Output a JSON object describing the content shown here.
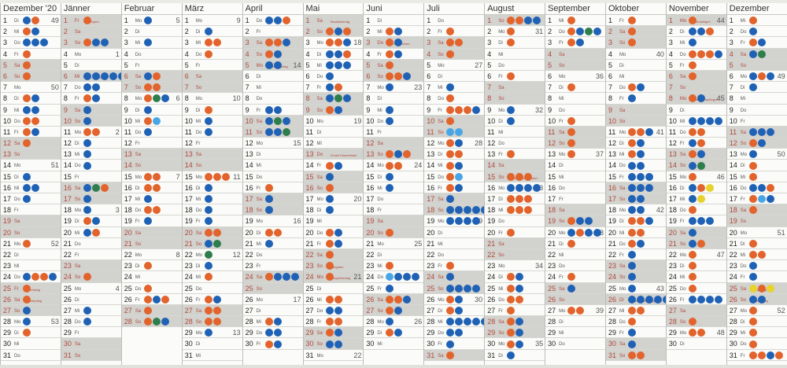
{
  "calendar": {
    "colors": {
      "orange": "#e2632b",
      "blue": "#1f62b5",
      "green": "#2e7d4c",
      "lightblue": "#49a6e6",
      "yellow": "#e8d22c",
      "red": "#c8332c"
    },
    "months": [
      {
        "name": "Dezember '20",
        "start_weekday": 1,
        "length": 31,
        "holidays": {
          "25": "Christtag",
          "26": "Stefanitag"
        },
        "kw": {
          "1": "49",
          "7": "50",
          "14": "51",
          "21": "52",
          "28": "53"
        },
        "markers": {
          "1": "BO",
          "2": "OB",
          "3": "BBB",
          "4": "O",
          "5": "O",
          "6": "O",
          "8": "OB",
          "9": "BB",
          "10": "OO",
          "11": "OB",
          "12": "O",
          "15": "B",
          "16": "BB",
          "17": "B",
          "21": "O",
          "24": "BOOB",
          "25": "O",
          "26": "O",
          "27": "B",
          "28": "B",
          "29": "O"
        }
      },
      {
        "name": "Jänner",
        "start_weekday": 4,
        "length": 31,
        "holidays": {
          "1": "Neujahr",
          "6": "Hl. 3 Könige"
        },
        "kw": {
          "4": "1",
          "11": "2",
          "18": "3",
          "25": "4"
        },
        "markers": {
          "1": "O",
          "3": "OBB",
          "6": "BBBBB",
          "7": "BB",
          "8": "OB",
          "9": "B",
          "10": "B",
          "11": "OO",
          "12": "B",
          "13": "B",
          "14": "B",
          "16": "BGO",
          "17": "B",
          "18": "B",
          "19": "OB",
          "20": "BO",
          "24": "O",
          "27": "B",
          "28": "B"
        }
      },
      {
        "name": "Februar",
        "start_weekday": 0,
        "length": 28,
        "holidays": {},
        "kw": {
          "1": "5",
          "8": "6",
          "15": "7",
          "22": "8"
        },
        "markers": {
          "1": "B",
          "3": "B",
          "6": "BO",
          "7": "OO",
          "8": "OGB",
          "9": "B",
          "10": "OL",
          "11": "B",
          "15": "OO",
          "16": "OO",
          "17": "B",
          "18": "OO",
          "19": "B",
          "23": "O",
          "25": "O",
          "26": "OBO",
          "27": "O",
          "28": "OGB"
        }
      },
      {
        "name": "März",
        "start_weekday": 0,
        "length": 31,
        "holidays": {},
        "kw": {
          "1": "9",
          "8": "10",
          "15": "11",
          "22": "12",
          "29": "13"
        },
        "markers": {
          "2": "B",
          "3": "OO",
          "4": "O",
          "9": "O",
          "10": "B",
          "11": "B",
          "15": "OOO",
          "16": "B",
          "17": "B",
          "18": "B",
          "19": "B",
          "20": "OO",
          "21": "BG",
          "22": "G",
          "23": "B",
          "24": "O",
          "26": "OB",
          "27": "OO",
          "28": "OO",
          "29": "B"
        }
      },
      {
        "name": "April",
        "start_weekday": 3,
        "length": 30,
        "holidays": {
          "5": "Ostermontag"
        },
        "kw": {
          "5": "14",
          "12": "15",
          "19": "16",
          "26": "17"
        },
        "markers": {
          "1": "BBO",
          "3": "OOB",
          "4": "OB",
          "5": "BB",
          "9": "BB",
          "10": "BGB",
          "11": "BBG",
          "16": "O",
          "17": "B",
          "18": "B",
          "20": "OO",
          "21": "B",
          "24": "OBBB",
          "28": "OB",
          "29": "BB",
          "30": "OB"
        }
      },
      {
        "name": "Mai",
        "start_weekday": 5,
        "length": 31,
        "holidays": {
          "1": "Staatsfeiertag",
          "13": "Christi Himmelfahrt",
          "23": "Pfingsten",
          "24": "Pfingstmontag"
        },
        "kw": {
          "3": "18",
          "10": "19",
          "17": "20",
          "24": "21",
          "31": "22"
        },
        "markers": {
          "2": "OBO",
          "3": "OOB",
          "4": "BBO",
          "5": "BBB",
          "6": "B",
          "7": "BO",
          "8": "BGB",
          "9": "OB",
          "14": "OB",
          "15": "B",
          "16": "O",
          "17": "B",
          "18": "B",
          "20": "OB",
          "21": "OB",
          "22": "O",
          "23": "O",
          "24": "O",
          "26": "OO",
          "27": "BB",
          "28": "OO",
          "29": "OB",
          "30": "BB"
        }
      },
      {
        "name": "Juni",
        "start_weekday": 1,
        "length": 30,
        "holidays": {
          "3": "Fronleichnam"
        },
        "kw": {
          "7": "23",
          "14": "24",
          "21": "25",
          "28": "26"
        },
        "markers": {
          "2": "OB",
          "3": "OB",
          "4": "OB",
          "5": "O",
          "6": "OOB",
          "7": "B",
          "9": "B",
          "10": "B",
          "13": "OBO",
          "14": "OO",
          "15": "B",
          "16": "B",
          "20": "O",
          "23": "O",
          "24": "LBBB",
          "25": "B",
          "26": "OOB",
          "27": "OB",
          "28": "B",
          "29": "OB"
        }
      },
      {
        "name": "Juli",
        "start_weekday": 3,
        "length": 31,
        "holidays": {},
        "kw": {
          "5": "27",
          "12": "28",
          "19": "29",
          "26": "30"
        },
        "markers": {
          "2": "O",
          "3": "OO",
          "4": "O",
          "7": "B",
          "8": "O",
          "9": "OOOB",
          "10": "O",
          "11": "LL",
          "12": "OB",
          "13": "OO",
          "14": "OB",
          "15": "OL",
          "16": "OB",
          "17": "B",
          "18": "BBBBB",
          "19": "BBBB",
          "23": "O",
          "24": "B",
          "25": "BBBB",
          "26": "OB",
          "27": "OB",
          "28": "BBBBB",
          "29": "BB",
          "30": "B",
          "31": "O"
        }
      },
      {
        "name": "August",
        "start_weekday": 6,
        "length": 31,
        "holidays": {
          "15": "Mariä Himmelfahrt"
        },
        "kw": {
          "2": "31",
          "9": "32",
          "16": "33",
          "23": "34",
          "30": "35"
        },
        "markers": {
          "1": "OOBB",
          "2": "O",
          "3": "O",
          "6": "O",
          "9": "B",
          "10": "B",
          "13": "O",
          "15": "OOO",
          "16": "BBBB",
          "17": "OOO",
          "18": "OOO",
          "20": "O",
          "24": "OB",
          "25": "OB",
          "26": "OO",
          "27": "O",
          "28": "OB",
          "29": "OB",
          "30": "OB",
          "31": "B"
        }
      },
      {
        "name": "September",
        "start_weekday": 2,
        "length": 30,
        "holidays": {},
        "kw": {
          "6": "36",
          "13": "37",
          "20": "38",
          "27": "39"
        },
        "markers": {
          "1": "O",
          "2": "OBGB",
          "3": "OB",
          "7": "O",
          "10": "O",
          "11": "O",
          "12": "O",
          "13": "O",
          "19": "OBB",
          "20": "BOBB",
          "21": "O",
          "24": "O",
          "25": "B",
          "27": "OO"
        }
      },
      {
        "name": "Oktober",
        "start_weekday": 4,
        "length": 31,
        "holidays": {
          "26": "Nationalfeiertag"
        },
        "kw": {
          "4": "40",
          "11": "41",
          "18": "42",
          "25": "43"
        },
        "markers": {
          "1": "O",
          "2": "O",
          "3": "O",
          "7": "OB",
          "8": "B",
          "11": "OOB",
          "12": "OB",
          "13": "OB",
          "14": "BB",
          "15": "BBB",
          "16": "BBB",
          "17": "BB",
          "18": "BB",
          "19": "OOB",
          "20": "OO",
          "21": "OB",
          "22": "B",
          "23": "B",
          "24": "B",
          "25": "B",
          "26": "BBBBB",
          "27": "OO",
          "28": "O",
          "29": "B",
          "30": "B",
          "31": "OO"
        }
      },
      {
        "name": "November",
        "start_weekday": 0,
        "length": 30,
        "holidays": {
          "1": "Allerheiligen",
          "8": "Mariä Empfängnis"
        },
        "kw": {
          "1": "44",
          "8": "45",
          "15": "46",
          "22": "47",
          "29": "48"
        },
        "markers": {
          "1": "O",
          "2": "BBO",
          "3": "B",
          "4": "OOOB",
          "5": "O",
          "6": "O",
          "8": "OB",
          "10": "BBBB",
          "11": "OO",
          "12": "BO",
          "13": "OB",
          "14": "BG",
          "15": "O",
          "16": "BOY",
          "17": "BY",
          "18": "O",
          "19": "BBB",
          "20": "B",
          "21": "BO",
          "22": "O",
          "23": "O",
          "24": "O",
          "25": "O",
          "26": "BBBB",
          "28": "O",
          "29": "OO"
        }
      },
      {
        "name": "Dezember",
        "start_weekday": 2,
        "length": 31,
        "holidays": {
          "25": "Christtag",
          "26": "Stefanitag"
        },
        "kw": {
          "6": "49",
          "13": "50",
          "20": "51",
          "27": "52"
        },
        "markers": {
          "1": "O",
          "2": "B",
          "3": "OB",
          "4": "BG",
          "6": "BOB",
          "7": "B",
          "11": "BBB",
          "12": "OB",
          "13": "B",
          "14": "O",
          "15": "O",
          "16": "BBO",
          "17": "OLB",
          "18": "O",
          "21": "O",
          "22": "OO",
          "23": "B",
          "24": "B",
          "25": "YOY",
          "26": "BB",
          "27": "O",
          "28": "O",
          "29": "O",
          "30": "O",
          "31": "OOBO"
        }
      }
    ]
  }
}
